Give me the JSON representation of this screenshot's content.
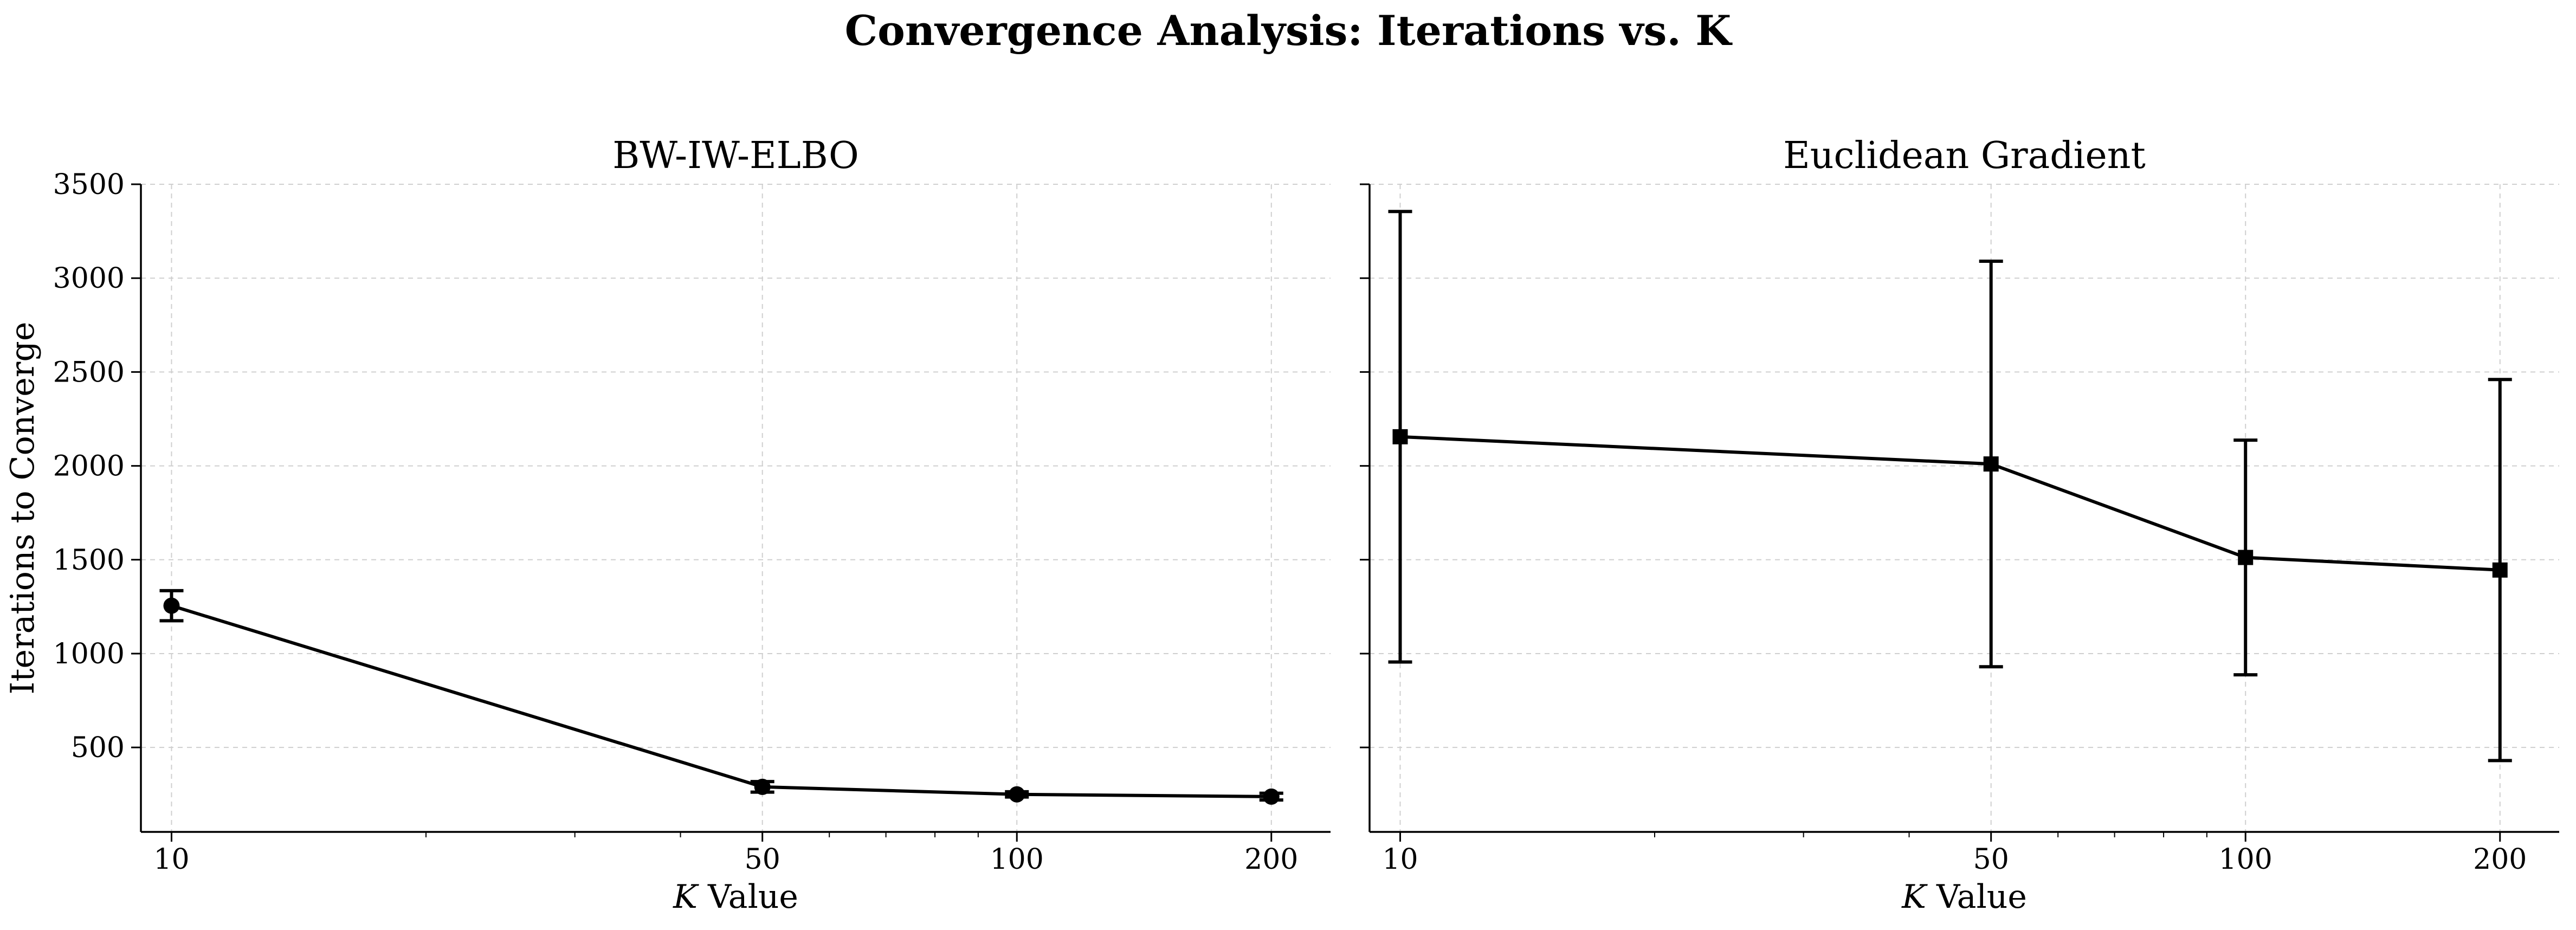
{
  "figure": {
    "title": "Convergence Analysis: Iterations vs. K"
  },
  "chart_data": [
    {
      "type": "line",
      "title": "BW-IW-ELBO",
      "xlabel_var": "K",
      "xlabel_rest": " Value",
      "ylabel": "Iterations to Converge",
      "xscale": "log",
      "xlim": [
        9.2,
        235
      ],
      "ylim": [
        50,
        3500
      ],
      "x": [
        10,
        50,
        100,
        200
      ],
      "xticks": [
        "10",
        "50",
        "100",
        "200"
      ],
      "yticks": [
        500,
        1000,
        1500,
        2000,
        2500,
        3000,
        3500
      ],
      "show_ytick_labels": true,
      "grid": true,
      "marker": "circle",
      "series": [
        {
          "values": [
            1255,
            290,
            250,
            238
          ],
          "error": [
            80,
            28,
            14,
            18
          ]
        }
      ]
    },
    {
      "type": "line",
      "title": "Euclidean Gradient",
      "xlabel_var": "K",
      "xlabel_rest": " Value",
      "ylabel": "",
      "xscale": "log",
      "xlim": [
        9.2,
        235
      ],
      "ylim": [
        50,
        3500
      ],
      "x": [
        10,
        50,
        100,
        200
      ],
      "xticks": [
        "10",
        "50",
        "100",
        "200"
      ],
      "yticks": [
        500,
        1000,
        1500,
        2000,
        2500,
        3000,
        3500
      ],
      "show_ytick_labels": false,
      "grid": true,
      "marker": "square",
      "series": [
        {
          "values": [
            2155,
            2010,
            1512,
            1445
          ],
          "error": [
            1200,
            1080,
            625,
            1015
          ]
        }
      ]
    }
  ]
}
